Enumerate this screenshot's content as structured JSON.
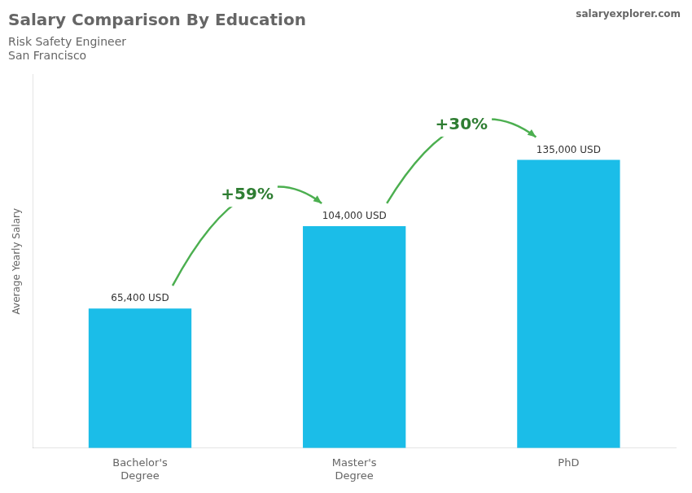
{
  "chart_data": {
    "type": "bar",
    "title": "Salary Comparison By Education",
    "subtitle": [
      "Risk Safety Engineer",
      "San Francisco"
    ],
    "credit": "salaryexplorer.com",
    "ylabel": "Average Yearly Salary",
    "categories": [
      "Bachelor's\nDegree",
      "Master's\nDegree",
      "PhD"
    ],
    "values": [
      65400,
      104000,
      135000
    ],
    "value_labels": [
      "65,400 USD",
      "104,000 USD",
      "135,000 USD"
    ],
    "data_labels": true,
    "annotations": [
      "+59%",
      "+30%"
    ],
    "color": "#1bbde8",
    "ylim": [
      0,
      175000
    ],
    "tick_labels": "x",
    "grid": false
  }
}
